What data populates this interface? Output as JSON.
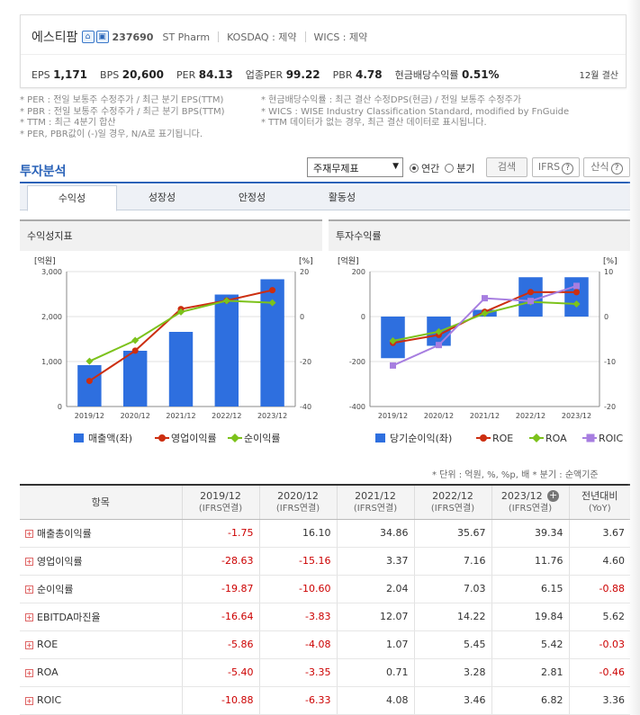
{
  "header": {
    "company_name": "에스티팜",
    "code": "237690",
    "eng_name": "ST Pharm",
    "market": "KOSDAQ : 제약",
    "wics": "WICS : 제약",
    "metrics": [
      {
        "label": "EPS",
        "value": "1,171"
      },
      {
        "label": "BPS",
        "value": "20,600"
      },
      {
        "label": "PER",
        "value": "84.13"
      },
      {
        "label": "업종PER",
        "value": "99.22"
      },
      {
        "label": "PBR",
        "value": "4.78"
      },
      {
        "label": "현금배당수익률",
        "value": "0.51%"
      }
    ],
    "settlement": "12월 결산"
  },
  "notes_left": [
    "* PER : 전일 보통주 수정주가 / 최근 분기 EPS(TTM)",
    "* PBR : 전일 보통주 수정주가 / 최근 분기 BPS(TTM)",
    "* TTM : 최근 4분기 합산",
    "* PER, PBR값이 (-)일 경우, N/A로 표기됩니다."
  ],
  "notes_right": [
    "* 현금배당수익률 : 최근 결산 수정DPS(현금) / 전일 보통주 수정주가",
    "* WICS : WISE Industry Classification Standard, modified by FnGuide",
    "* TTM 데이터가 없는 경우, 최근 결산 데이터로 표시됩니다."
  ],
  "analysis": {
    "title": "투자분석",
    "select_value": "주재무제표",
    "radio_annual": "연간",
    "radio_quarter": "분기",
    "search_btn": "검색",
    "ifrs_btn": "IFRS",
    "formula_btn": "산식",
    "tabs": [
      "수익성",
      "성장성",
      "안정성",
      "활동성"
    ]
  },
  "chart_left_title": "수익성지표",
  "chart_right_title": "투자수익률",
  "chart_data": [
    {
      "type": "bar",
      "title": "수익성지표",
      "categories": [
        "2019/12",
        "2020/12",
        "2021/12",
        "2022/12",
        "2023/12"
      ],
      "left_axis_label": "[억원]",
      "right_axis_label": "[%]",
      "left_ticks": [
        "3,000",
        "2,000",
        "1,000",
        "0"
      ],
      "right_ticks": [
        "20",
        "0",
        "-20",
        "-40"
      ],
      "ylim_left": [
        0,
        3000
      ],
      "ylim_right": [
        -40,
        20
      ],
      "series": [
        {
          "name": "매출액(좌)",
          "kind": "bar",
          "axis": "left",
          "color": "#2e6fdf",
          "values": [
            920,
            1240,
            1660,
            2490,
            2830
          ]
        },
        {
          "name": "영업이익률",
          "kind": "line",
          "axis": "right",
          "color": "#cc2e10",
          "values": [
            -28.63,
            -15.16,
            3.37,
            7.16,
            11.76
          ]
        },
        {
          "name": "순이익률",
          "kind": "line",
          "axis": "right",
          "color": "#7cc21b",
          "values": [
            -19.87,
            -10.6,
            2.04,
            7.03,
            6.15
          ]
        }
      ]
    },
    {
      "type": "bar",
      "title": "투자수익률",
      "categories": [
        "2019/12",
        "2020/12",
        "2021/12",
        "2022/12",
        "2023/12"
      ],
      "left_axis_label": "[억원]",
      "right_axis_label": "[%]",
      "left_ticks": [
        "200",
        "0",
        "-200",
        "-400"
      ],
      "right_ticks": [
        "10",
        "0",
        "-10",
        "-20"
      ],
      "ylim_left": [
        -400,
        200
      ],
      "ylim_right": [
        -20,
        10
      ],
      "series": [
        {
          "name": "당기순이익(좌)",
          "kind": "bar",
          "axis": "left",
          "color": "#2e6fdf",
          "values": [
            -185,
            -130,
            30,
            175,
            175
          ]
        },
        {
          "name": "ROE",
          "kind": "line",
          "axis": "right",
          "color": "#cc2e10",
          "values": [
            -5.86,
            -4.08,
            1.07,
            5.45,
            5.42
          ]
        },
        {
          "name": "ROA",
          "kind": "line",
          "axis": "right",
          "color": "#7cc21b",
          "values": [
            -5.4,
            -3.35,
            0.71,
            3.28,
            2.81
          ]
        },
        {
          "name": "ROIC",
          "kind": "line",
          "axis": "right",
          "color": "#a77ee0",
          "values": [
            -10.88,
            -6.33,
            4.08,
            3.46,
            6.82
          ]
        }
      ]
    }
  ],
  "unit_note": "* 단위 : 억원, %, %p, 배      * 분기 : 순액기준",
  "table": {
    "head_item": "항목",
    "head_cols": [
      {
        "year": "2019/12",
        "sub": "(IFRS연결)"
      },
      {
        "year": "2020/12",
        "sub": "(IFRS연결)"
      },
      {
        "year": "2021/12",
        "sub": "(IFRS연결)"
      },
      {
        "year": "2022/12",
        "sub": "(IFRS연결)"
      },
      {
        "year": "2023/12",
        "sub": "(IFRS연결)"
      },
      {
        "year": "전년대비",
        "sub": "(YoY)"
      }
    ],
    "rows": [
      {
        "label": "매출총이익률",
        "values": [
          "-1.75",
          "16.10",
          "34.86",
          "35.67",
          "39.34",
          "3.67"
        ]
      },
      {
        "label": "영업이익률",
        "values": [
          "-28.63",
          "-15.16",
          "3.37",
          "7.16",
          "11.76",
          "4.60"
        ]
      },
      {
        "label": "순이익률",
        "values": [
          "-19.87",
          "-10.60",
          "2.04",
          "7.03",
          "6.15",
          "-0.88"
        ]
      },
      {
        "label": "EBITDA마진율",
        "values": [
          "-16.64",
          "-3.83",
          "12.07",
          "14.22",
          "19.84",
          "5.62"
        ]
      },
      {
        "label": "ROE",
        "values": [
          "-5.86",
          "-4.08",
          "1.07",
          "5.45",
          "5.42",
          "-0.03"
        ]
      },
      {
        "label": "ROA",
        "values": [
          "-5.40",
          "-3.35",
          "0.71",
          "3.28",
          "2.81",
          "-0.46"
        ]
      },
      {
        "label": "ROIC",
        "values": [
          "-10.88",
          "-6.33",
          "4.08",
          "3.46",
          "6.82",
          "3.36"
        ]
      }
    ]
  }
}
